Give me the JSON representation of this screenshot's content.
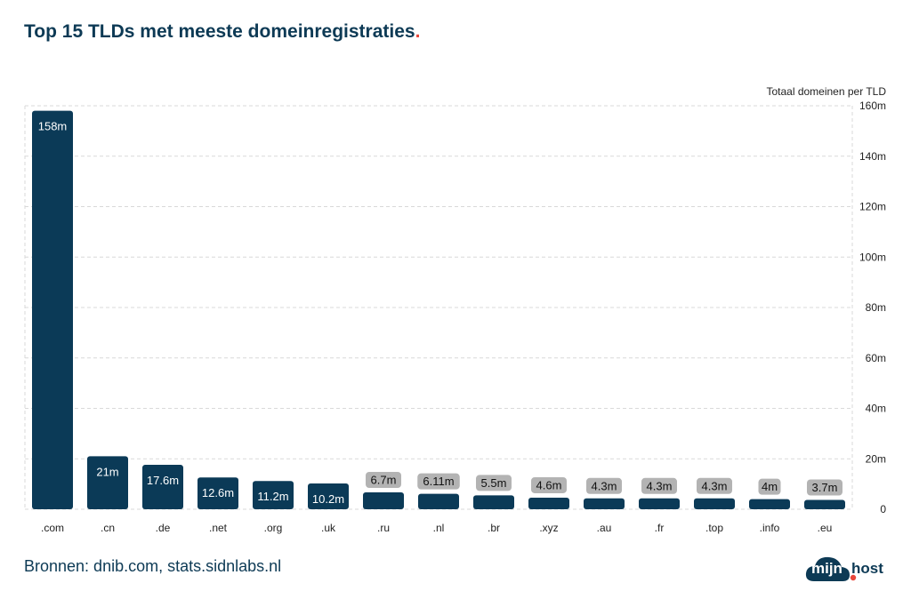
{
  "title": "Top 15 TLDs met meeste domeinregistraties",
  "title_dot": ".",
  "source": "Bronnen: dnib.com, stats.sidnlabs.nl",
  "logo": {
    "left": "mijn",
    "right": "host",
    "separator": "."
  },
  "chart_data": {
    "type": "bar",
    "title": "Top 15 TLDs met meeste domeinregistraties",
    "ylabel": "Totaal domeinen per TLD",
    "ylim": [
      0,
      160
    ],
    "yticks": [
      0,
      20,
      40,
      60,
      80,
      100,
      120,
      140,
      160
    ],
    "ytick_labels": [
      "0",
      "20m",
      "40m",
      "60m",
      "80m",
      "100m",
      "120m",
      "140m",
      "160m"
    ],
    "axis_side": "right",
    "grid": true,
    "categories": [
      ".com",
      ".cn",
      ".de",
      ".net",
      ".org",
      ".uk",
      ".ru",
      ".nl",
      ".br",
      ".xyz",
      ".au",
      ".fr",
      ".top",
      ".info",
      ".eu"
    ],
    "values": [
      158,
      21,
      17.6,
      12.6,
      11.2,
      10.2,
      6.7,
      6.11,
      5.5,
      4.6,
      4.3,
      4.3,
      4.3,
      4,
      3.7
    ],
    "labels": [
      "158m",
      "21m",
      "17.6m",
      "12.6m",
      "11.2m",
      "10.2m",
      "6.7m",
      "6.11m",
      "5.5m",
      "4.6m",
      "4.3m",
      "4.3m",
      "4.3m",
      "4m",
      "3.7m"
    ],
    "bar_color": "#0b3a57",
    "label_bg_outside": "#b3b3b3",
    "grid_color": "#d9d9d9"
  }
}
